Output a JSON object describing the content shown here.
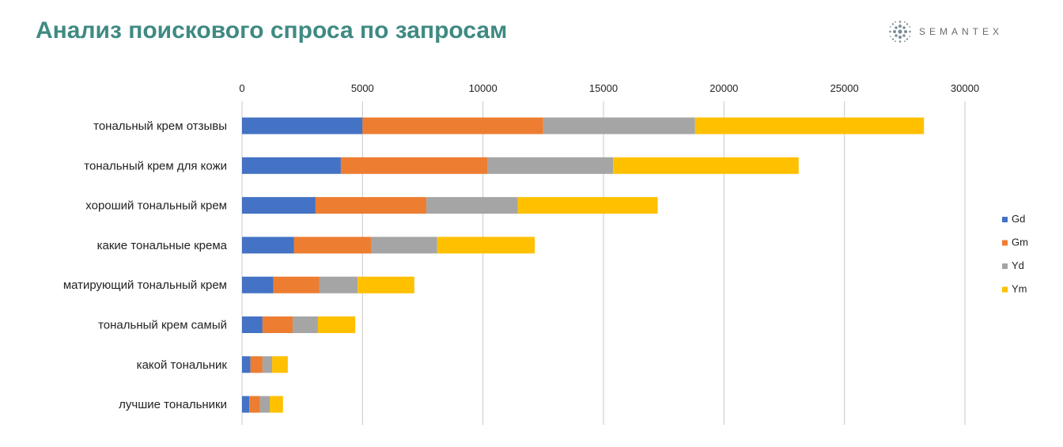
{
  "header": {
    "title": "Анализ поискового спроса по запросам",
    "brand": "SEMANTEX"
  },
  "colors": {
    "title": "#3f8a83",
    "grid": "#c8c8c8",
    "brand_dots": "#7d8f96"
  },
  "chart_data": {
    "type": "bar",
    "orientation": "horizontal",
    "stacked": true,
    "categories": [
      "тональный крем отзывы",
      "тональный крем для кожи",
      "хороший тональный крем",
      "какие тональные крема",
      "матирующий тональный крем",
      "тональный крем самый",
      "какой тональник",
      "лучшие тональники"
    ],
    "series": [
      {
        "name": "Gd",
        "color": "#4472c4",
        "values": [
          5000,
          4100,
          3050,
          2150,
          1300,
          850,
          350,
          300
        ]
      },
      {
        "name": "Gm",
        "color": "#ed7d31",
        "values": [
          7500,
          6100,
          4600,
          3200,
          1900,
          1250,
          500,
          450
        ]
      },
      {
        "name": "Yd",
        "color": "#a5a5a5",
        "values": [
          6300,
          5200,
          3800,
          2750,
          1600,
          1050,
          400,
          400
        ]
      },
      {
        "name": "Ym",
        "color": "#ffc000",
        "values": [
          9500,
          7700,
          5800,
          4050,
          2350,
          1550,
          650,
          550
        ]
      }
    ],
    "x_ticks": [
      "0",
      "5000",
      "10000",
      "15000",
      "20000",
      "25000",
      "30000"
    ],
    "xlim": [
      0,
      30000
    ],
    "x_axis_position": "top",
    "grid": true,
    "legend_position": "right"
  }
}
